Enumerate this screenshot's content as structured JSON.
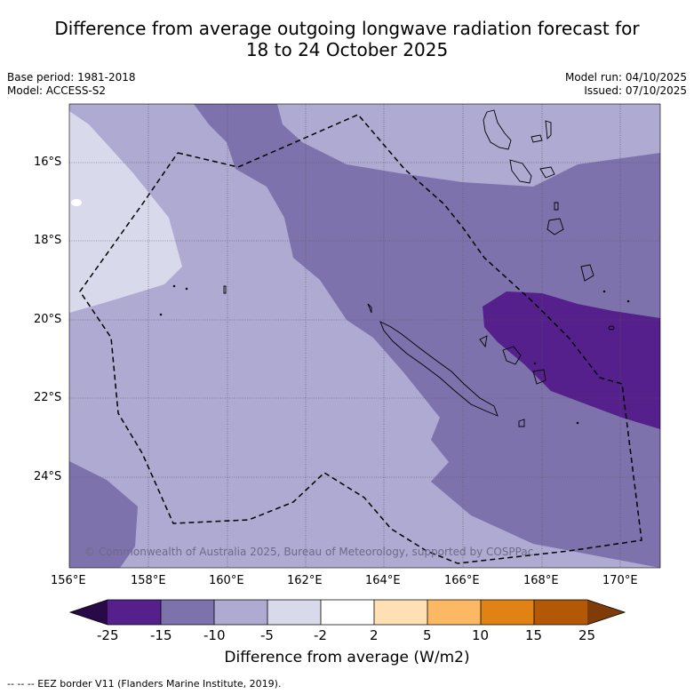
{
  "title": {
    "line1": "Difference from average outgoing longwave radiation forecast for",
    "line2": "18 to 24 October 2025"
  },
  "meta": {
    "base_period": "Base period: 1981-2018",
    "model": "Model: ACCESS-S2",
    "model_run": "Model run: 04/10/2025",
    "issued": "Issued: 07/10/2025"
  },
  "map": {
    "lon_ticks": [
      "156°E",
      "158°E",
      "160°E",
      "162°E",
      "164°E",
      "166°E",
      "168°E",
      "170°E"
    ],
    "lat_ticks": [
      "16°S",
      "18°S",
      "20°S",
      "22°S",
      "24°S"
    ],
    "copyright": "© Commonwealth of Australia 2025, Bureau of Meteorology, supported by COSPPac",
    "colors": {
      "-15_-10": "#7e72ad",
      "-10_-5": "#aeaad2",
      "-5_-2": "#d9d9ec",
      "-25_-15": "#55208c",
      "coast": "#000000"
    }
  },
  "colorbar": {
    "ticks": [
      "-25",
      "-15",
      "-10",
      "-5",
      "-2",
      "2",
      "5",
      "10",
      "15",
      "25"
    ],
    "colors": [
      "#280a48",
      "#55208c",
      "#7e72ad",
      "#aeaad2",
      "#d9d9ec",
      "#ffffff",
      "#ffe0b4",
      "#fdb863",
      "#e08214",
      "#b35806",
      "#7f3b08"
    ],
    "label": "Difference from average (W/m2)"
  },
  "legend_note": "--  --  -- EEZ border V11 (Flanders Marine Institute, 2019)."
}
